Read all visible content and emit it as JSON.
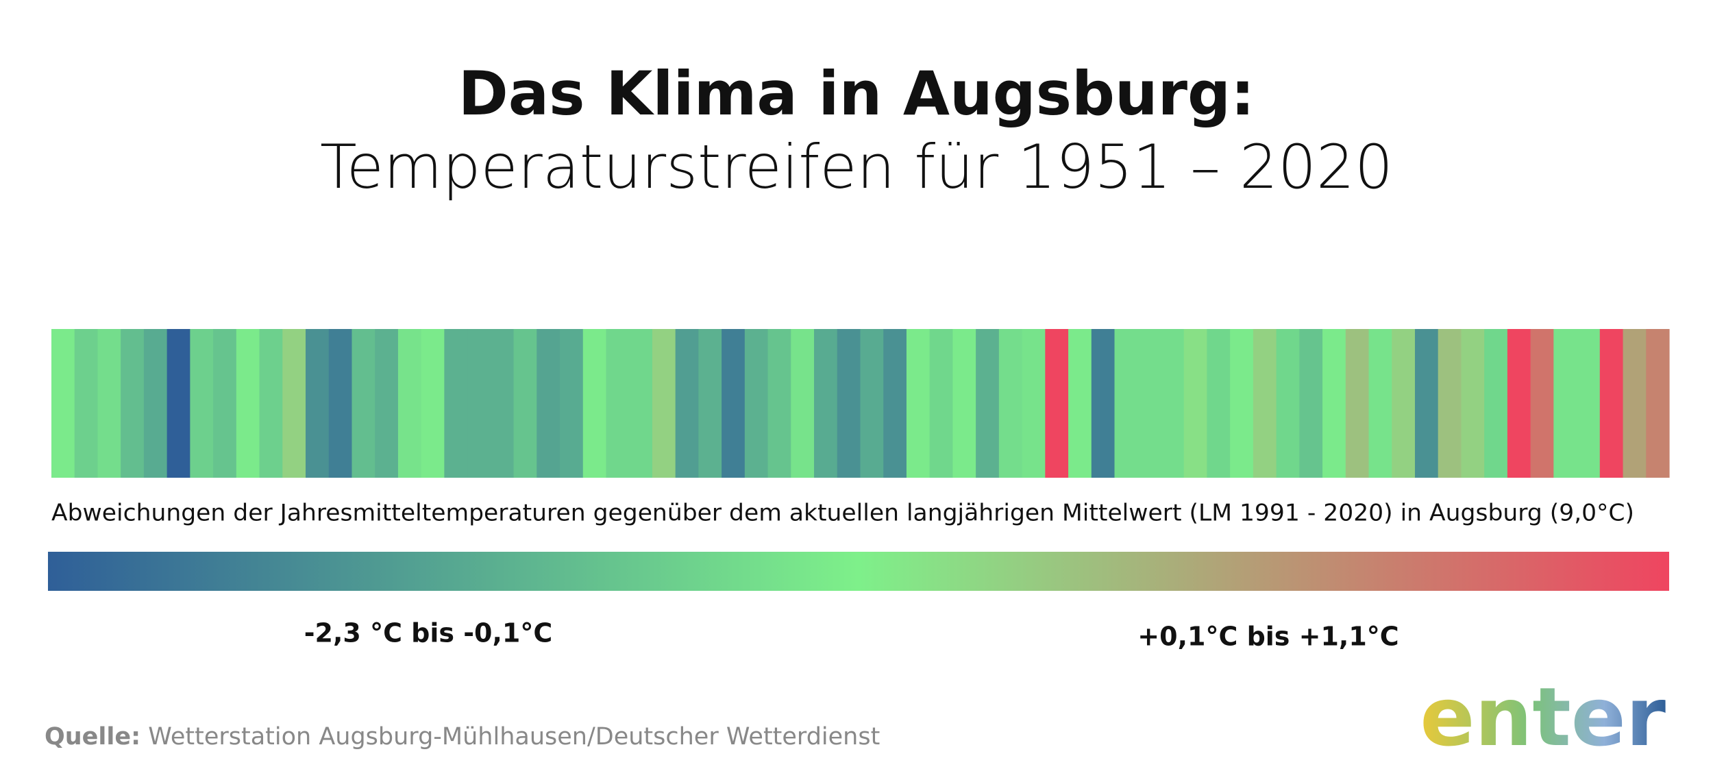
{
  "chart_data": {
    "type": "stripes",
    "title": "Das Klima in Augsburg:",
    "subtitle": "Temperaturstreifen für 1951 – 2020",
    "caption": "Abweichungen der Jahresmitteltemperaturen gegenüber dem aktuellen langjährigen Mittelwert (LM 1991 - 2020) in Augsburg (9,0°C)",
    "values": [
      -0.1,
      -0.5,
      -0.3,
      -0.8,
      -1.1,
      -2.3,
      -0.5,
      -0.7,
      -0.1,
      -0.5,
      0.2,
      -1.5,
      -1.8,
      -0.8,
      -1.0,
      -0.2,
      -0.1,
      -1.0,
      -1.0,
      -1.0,
      -0.7,
      -1.2,
      -1.1,
      -0.1,
      -0.4,
      -0.4,
      0.2,
      -1.3,
      -1.0,
      -1.8,
      -1.0,
      -0.7,
      -0.2,
      -1.1,
      -1.5,
      -1.1,
      -1.5,
      -0.1,
      -0.4,
      -0.1,
      -1.0,
      -0.3,
      -0.2,
      1.1,
      -0.1,
      -1.8,
      -0.3,
      -0.3,
      -0.3,
      0.1,
      -0.4,
      -0.1,
      0.2,
      -0.4,
      -0.7,
      -0.1,
      0.3,
      -0.2,
      0.2,
      -1.5,
      0.3,
      0.2,
      -0.4,
      1.1,
      0.8,
      -0.2,
      -0.2,
      1.1,
      0.5,
      0.7
    ],
    "colors": [
      "#2f5f98",
      "#7ef08a",
      "#ef4560"
    ],
    "colorlim": [
      -2.3,
      1.1
    ],
    "legend_labels": [
      "-2,3 °C bis -0,1°C",
      "+0,1°C bis +1,1°C"
    ]
  },
  "source": {
    "label": "Quelle:",
    "text": "Wetterstation Augsburg-Mühlhausen/Deutscher Wetterdienst"
  },
  "logo": "enter"
}
